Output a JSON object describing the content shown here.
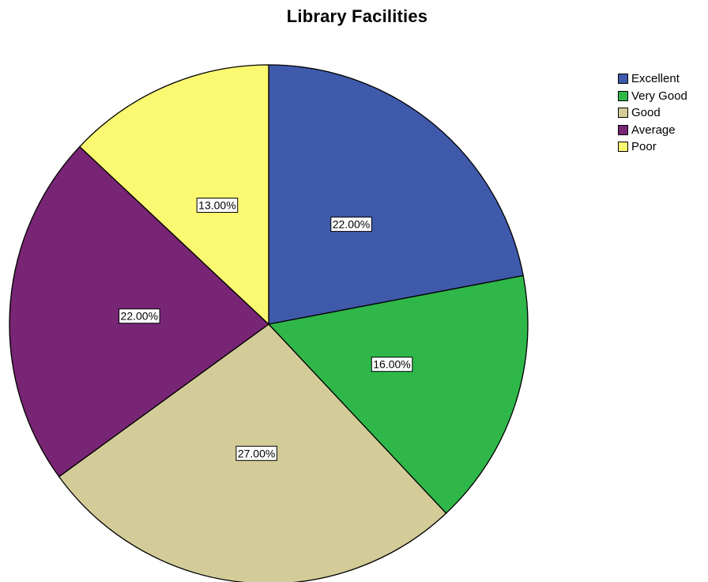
{
  "chart_data": {
    "type": "pie",
    "title": "Library Facilities",
    "categories": [
      "Excellent",
      "Very Good",
      "Good",
      "Average",
      "Poor"
    ],
    "values": [
      22.0,
      16.0,
      27.0,
      22.0,
      13.0
    ],
    "labels": [
      "22.00%",
      "16.00%",
      "27.00%",
      "22.00%",
      "13.00%"
    ],
    "colors": [
      "#3f59ab",
      "#2fb74a",
      "#d3cc98",
      "#772574",
      "#fbf872"
    ],
    "start_angle": "12 o'clock",
    "direction": "clockwise",
    "legend": {
      "placement": "top-right",
      "entries": [
        "Excellent",
        "Very Good",
        "Good",
        "Average",
        "Poor"
      ]
    }
  }
}
